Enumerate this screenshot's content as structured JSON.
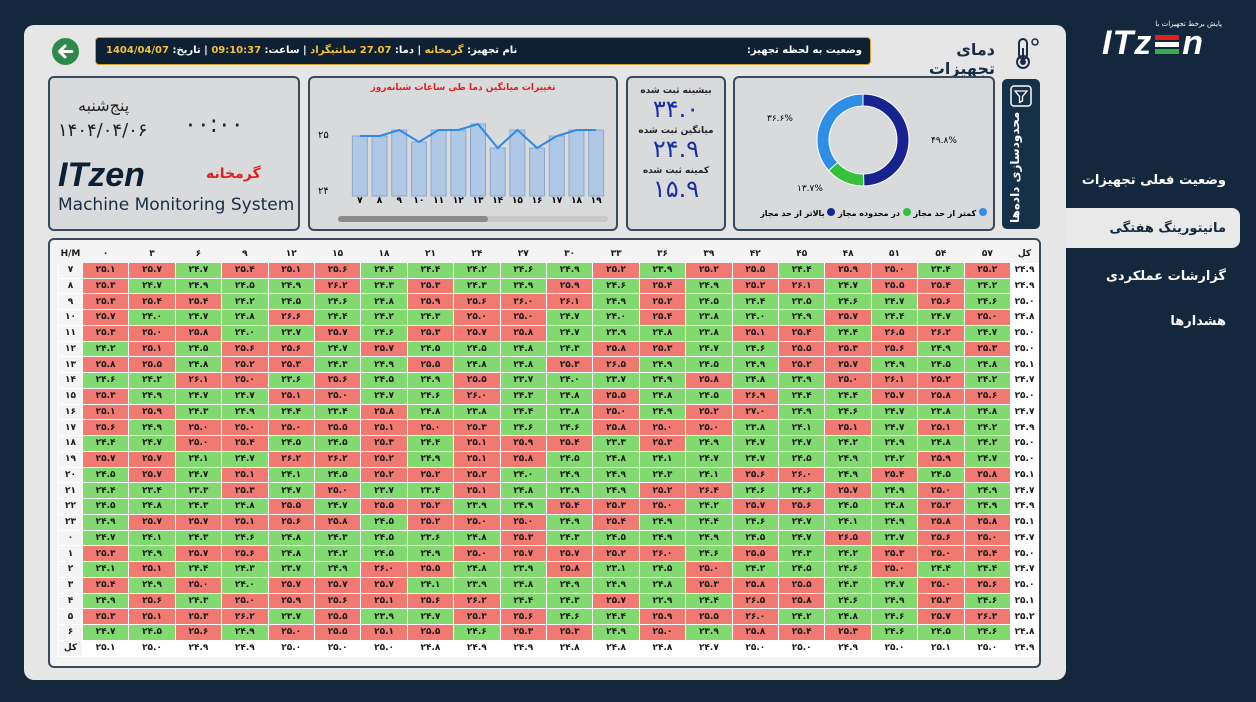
{
  "sidebar": {
    "logo_text": "ITz",
    "logo_text_tail": "n",
    "logo_tagline": "پایش برخط تجهیزات با",
    "items": [
      {
        "label": "وضعیت فعلی تجهیزات"
      },
      {
        "label": "مانیتورینگ هفتگی"
      },
      {
        "label": "گزارشات عملکردی"
      },
      {
        "label": "هشدارها"
      }
    ]
  },
  "header": {
    "page_title": "دمای تجهیزات",
    "status_label": "وضعیت به لحظه تجهیز:",
    "device_name_label": "نام تجهیز:",
    "device_name": "گرمخانه",
    "temp_label": "| دما:",
    "temp_value": "27.07 سانتیگراد",
    "time_label": "| ساعت:",
    "time_value": "09:10:37",
    "date_label": "| تاریخ:",
    "date_value": "1404/04/07"
  },
  "clock_panel": {
    "weekday": "پنج‌شنبه",
    "date": "۱۴۰۴/۰۴/۰۶",
    "time": "۰۰:۰۰",
    "device": "گرمخانه",
    "brand": "ITzen",
    "system_name": "Machine Monitoring System"
  },
  "trend_chart": {
    "title": "تغییرات میانگین دما طی ساعات شبانه‌روز",
    "y_ticks": [
      "۲۵",
      "۲۴"
    ],
    "x_ticks": [
      "۷",
      "۸",
      "۹",
      "۱۰",
      "۱۱",
      "۱۲",
      "۱۳",
      "۱۴",
      "۱۵",
      "۱۶",
      "۱۷",
      "۱۸",
      "۱۹"
    ]
  },
  "chart_data": {
    "type": "bar",
    "title": "تغییرات میانگین دما طی ساعات شبانه‌روز",
    "categories": [
      "7",
      "8",
      "9",
      "10",
      "11",
      "12",
      "13",
      "14",
      "15",
      "16",
      "17",
      "18",
      "19"
    ],
    "values": [
      24.9,
      24.9,
      25.0,
      24.8,
      25.0,
      25.0,
      25.1,
      24.7,
      25.0,
      24.7,
      24.9,
      25.0,
      25.0
    ],
    "line_values": [
      24.9,
      24.9,
      25.0,
      24.8,
      25.0,
      25.0,
      25.1,
      24.7,
      25.0,
      24.7,
      24.9,
      25.0,
      25.0
    ],
    "ylim": [
      23.9,
      25.4
    ]
  },
  "stats": {
    "max_label": "بیشینه ثبت شده",
    "max_value": "۳۴.۰",
    "avg_label": "میانگین ثبت شده",
    "avg_value": "۲۴.۹",
    "min_label": "کمینه ثبت شده",
    "min_value": "۱۵.۹"
  },
  "donut": {
    "segments": [
      {
        "label": "بالاتر از حد مجاز",
        "value": 49.8,
        "pct_text": "۴۹.۸%",
        "color": "#17248f"
      },
      {
        "label": "در محدوده مجاز",
        "value": 13.7,
        "pct_text": "۱۳.۷%",
        "color": "#35c23a"
      },
      {
        "label": "کمتر از حد مجاز",
        "value": 36.6,
        "pct_text": "۳۶.۶%",
        "color": "#2f8ee6"
      }
    ],
    "legend": [
      "کمتر از حد مجاز",
      "در محدوده مجاز",
      "بالاتر از حد مجاز"
    ]
  },
  "filter": {
    "label": "محدودسازی داده‌ها"
  },
  "heatmap": {
    "corner": "H/M",
    "total_label": "کل",
    "minute_headers": [
      "۰",
      "۳",
      "۶",
      "۹",
      "۱۲",
      "۱۵",
      "۱۸",
      "۲۱",
      "۲۴",
      "۲۷",
      "۳۰",
      "۳۳",
      "۳۶",
      "۳۹",
      "۴۲",
      "۴۵",
      "۴۸",
      "۵۱",
      "۵۴",
      "۵۷"
    ],
    "hours": [
      "۷",
      "۸",
      "۹",
      "۱۰",
      "۱۱",
      "۱۲",
      "۱۳",
      "۱۴",
      "۱۵",
      "۱۶",
      "۱۷",
      "۱۸",
      "۱۹",
      "۲۰",
      "۲۱",
      "۲۲",
      "۲۳",
      "۰",
      "۱",
      "۲",
      "۳",
      "۴",
      "۵",
      "۶"
    ],
    "rows": [
      [
        "۲۵.۱",
        "۲۵.۷",
        "۲۴.۷",
        "۲۵.۴",
        "۲۵.۱",
        "۲۵.۶",
        "۲۴.۴",
        "۲۴.۴",
        "۲۴.۲",
        "۲۴.۶",
        "۲۴.۹",
        "۲۵.۲",
        "۲۳.۹",
        "۲۵.۲",
        "۲۵.۵",
        "۲۴.۴",
        "۲۵.۹",
        "۲۵.۰",
        "۲۳.۴",
        "۲۵.۲"
      ],
      [
        "۲۵.۳",
        "۲۴.۷",
        "۲۴.۹",
        "۲۴.۵",
        "۲۴.۹",
        "۲۶.۲",
        "۲۴.۳",
        "۲۵.۳",
        "۲۴.۳",
        "۲۴.۹",
        "۲۵.۹",
        "۲۴.۶",
        "۲۵.۴",
        "۲۴.۹",
        "۲۵.۲",
        "۲۶.۱",
        "۲۴.۷",
        "۲۵.۵",
        "۲۵.۴",
        "۲۴.۲"
      ],
      [
        "۲۵.۳",
        "۲۵.۴",
        "۲۵.۴",
        "۲۴.۲",
        "۲۴.۵",
        "۲۴.۶",
        "۲۴.۸",
        "۲۵.۹",
        "۲۵.۶",
        "۲۶.۰",
        "۲۶.۱",
        "۲۴.۹",
        "۲۵.۲",
        "۲۴.۵",
        "۲۴.۴",
        "۲۳.۵",
        "۲۴.۶",
        "۲۴.۷",
        "۲۵.۶",
        "۲۴.۶"
      ],
      [
        "۲۵.۷",
        "۲۴.۰",
        "۲۴.۷",
        "۲۴.۸",
        "۲۶.۶",
        "۲۴.۴",
        "۲۴.۲",
        "۲۴.۳",
        "۲۵.۰",
        "۲۵.۰",
        "۲۴.۷",
        "۲۴.۰",
        "۲۵.۴",
        "۲۳.۸",
        "۲۴.۰",
        "۲۴.۹",
        "۲۵.۷",
        "۲۴.۴",
        "۲۴.۷",
        "۲۵.۰"
      ],
      [
        "۲۵.۳",
        "۲۵.۰",
        "۲۵.۸",
        "۲۴.۰",
        "۲۳.۷",
        "۲۵.۷",
        "۲۴.۶",
        "۲۵.۳",
        "۲۵.۷",
        "۲۵.۸",
        "۲۴.۷",
        "۲۳.۹",
        "۲۴.۸",
        "۲۳.۸",
        "۲۵.۱",
        "۲۵.۴",
        "۲۴.۴",
        "۲۶.۵",
        "۲۶.۲",
        "۲۴.۷"
      ],
      [
        "۲۴.۲",
        "۲۵.۱",
        "۲۴.۵",
        "۲۵.۶",
        "۲۵.۶",
        "۲۴.۷",
        "۲۵.۷",
        "۲۴.۵",
        "۲۴.۵",
        "۲۴.۸",
        "۲۴.۳",
        "۲۵.۸",
        "۲۵.۳",
        "۲۴.۷",
        "۲۴.۶",
        "۲۵.۵",
        "۲۵.۳",
        "۲۵.۶",
        "۲۴.۹",
        "۲۵.۳"
      ],
      [
        "۲۵.۸",
        "۲۵.۵",
        "۲۴.۸",
        "۲۵.۲",
        "۲۵.۳",
        "۲۴.۳",
        "۲۴.۹",
        "۲۵.۵",
        "۲۴.۸",
        "۲۴.۸",
        "۲۵.۳",
        "۲۶.۵",
        "۲۴.۹",
        "۲۴.۵",
        "۲۴.۹",
        "۲۵.۲",
        "۲۵.۷",
        "۲۴.۹",
        "۲۴.۵",
        "۲۴.۸"
      ],
      [
        "۲۴.۶",
        "۲۴.۲",
        "۲۶.۱",
        "۲۵.۰",
        "۲۳.۶",
        "۲۵.۶",
        "۲۴.۵",
        "۲۴.۹",
        "۲۵.۵",
        "۲۳.۷",
        "۲۴.۰",
        "۲۳.۷",
        "۲۴.۹",
        "۲۵.۸",
        "۲۴.۸",
        "۲۳.۹",
        "۲۵.۰",
        "۲۶.۱",
        "۲۵.۲",
        "۲۴.۲"
      ],
      [
        "۲۵.۳",
        "۲۴.۹",
        "۲۴.۷",
        "۲۴.۷",
        "۲۵.۱",
        "۲۵.۰",
        "۲۴.۷",
        "۲۴.۶",
        "۲۶.۰",
        "۲۴.۳",
        "۲۴.۸",
        "۲۵.۵",
        "۲۴.۸",
        "۲۴.۵",
        "۲۶.۹",
        "۲۴.۴",
        "۲۴.۴",
        "۲۵.۷",
        "۲۵.۸",
        "۲۵.۶"
      ],
      [
        "۲۵.۱",
        "۲۵.۹",
        "۲۴.۳",
        "۲۴.۹",
        "۲۴.۴",
        "۲۳.۴",
        "۲۵.۸",
        "۲۴.۸",
        "۲۳.۸",
        "۲۴.۴",
        "۲۳.۸",
        "۲۵.۰",
        "۲۴.۹",
        "۲۵.۲",
        "۲۷.۰",
        "۲۴.۹",
        "۲۴.۶",
        "۲۴.۷",
        "۲۳.۸",
        "۲۴.۸"
      ],
      [
        "۲۵.۶",
        "۲۴.۹",
        "۲۵.۰",
        "۲۵.۰",
        "۲۵.۰",
        "۲۵.۵",
        "۲۵.۱",
        "۲۵.۰",
        "۲۵.۳",
        "۲۴.۶",
        "۲۴.۶",
        "۲۵.۸",
        "۲۵.۰",
        "۲۵.۰",
        "۲۳.۸",
        "۲۴.۱",
        "۲۵.۱",
        "۲۴.۷",
        "۲۵.۱",
        "۲۴.۲"
      ],
      [
        "۲۴.۴",
        "۲۴.۷",
        "۲۵.۰",
        "۲۵.۴",
        "۲۴.۵",
        "۲۴.۵",
        "۲۵.۳",
        "۲۴.۴",
        "۲۵.۱",
        "۲۵.۹",
        "۲۵.۴",
        "۲۳.۳",
        "۲۵.۳",
        "۲۴.۹",
        "۲۴.۷",
        "۲۴.۷",
        "۲۴.۲",
        "۲۴.۹",
        "۲۴.۸",
        "۲۴.۲"
      ],
      [
        "۲۵.۷",
        "۲۵.۷",
        "۲۴.۱",
        "۲۴.۷",
        "۲۶.۲",
        "۲۶.۲",
        "۲۵.۲",
        "۲۴.۹",
        "۲۵.۱",
        "۲۵.۸",
        "۲۴.۵",
        "۲۴.۸",
        "۲۴.۱",
        "۲۴.۷",
        "۲۴.۷",
        "۲۴.۵",
        "۲۴.۹",
        "۲۴.۲",
        "۲۵.۹",
        "۲۴.۷"
      ],
      [
        "۲۴.۵",
        "۲۵.۷",
        "۲۴.۷",
        "۲۵.۱",
        "۲۴.۱",
        "۲۴.۵",
        "۲۵.۲",
        "۲۵.۲",
        "۲۵.۲",
        "۲۴.۰",
        "۲۴.۹",
        "۲۴.۹",
        "۲۴.۳",
        "۲۴.۱",
        "۲۵.۶",
        "۲۶.۰",
        "۲۴.۹",
        "۲۵.۴",
        "۲۴.۵",
        "۲۵.۸"
      ],
      [
        "۲۴.۴",
        "۲۳.۴",
        "۲۳.۳",
        "۲۵.۳",
        "۲۴.۷",
        "۲۵.۰",
        "۲۳.۷",
        "۲۳.۴",
        "۲۵.۱",
        "۲۴.۸",
        "۲۳.۹",
        "۲۴.۹",
        "۲۵.۲",
        "۲۶.۴",
        "۲۴.۶",
        "۲۴.۶",
        "۲۵.۷",
        "۲۴.۹",
        "۲۵.۰",
        "۲۴.۹"
      ],
      [
        "۲۴.۵",
        "۲۴.۸",
        "۲۴.۳",
        "۲۴.۸",
        "۲۵.۵",
        "۲۴.۷",
        "۲۵.۵",
        "۲۵.۲",
        "۲۳.۹",
        "۲۴.۹",
        "۲۵.۴",
        "۲۵.۳",
        "۲۵.۰",
        "۲۴.۲",
        "۲۵.۷",
        "۲۵.۶",
        "۲۴.۵",
        "۲۴.۸",
        "۲۵.۲",
        "۲۴.۹"
      ],
      [
        "۲۴.۹",
        "۲۵.۷",
        "۲۵.۷",
        "۲۵.۱",
        "۲۵.۶",
        "۲۵.۸",
        "۲۴.۵",
        "۲۵.۲",
        "۲۵.۰",
        "۲۵.۰",
        "۲۴.۹",
        "۲۵.۴",
        "۲۴.۹",
        "۲۴.۴",
        "۲۴.۶",
        "۲۴.۷",
        "۲۴.۱",
        "۲۴.۹",
        "۲۵.۸",
        "۲۵.۸"
      ],
      [
        "۲۴.۷",
        "۲۴.۱",
        "۲۴.۳",
        "۲۴.۶",
        "۲۴.۸",
        "۲۴.۳",
        "۲۴.۵",
        "۲۳.۶",
        "۲۴.۸",
        "۲۵.۳",
        "۲۴.۳",
        "۲۴.۵",
        "۲۴.۹",
        "۲۴.۹",
        "۲۴.۵",
        "۲۴.۷",
        "۲۶.۵",
        "۲۳.۷",
        "۲۵.۶",
        "۲۵.۰"
      ],
      [
        "۲۵.۳",
        "۲۴.۹",
        "۲۵.۷",
        "۲۵.۶",
        "۲۴.۸",
        "۲۴.۲",
        "۲۴.۵",
        "۲۴.۹",
        "۲۵.۰",
        "۲۵.۷",
        "۲۵.۷",
        "۲۵.۲",
        "۲۶.۰",
        "۲۴.۶",
        "۲۵.۵",
        "۲۴.۳",
        "۲۴.۲",
        "۲۵.۳",
        "۲۵.۰",
        "۲۵.۴"
      ],
      [
        "۲۴.۱",
        "۲۵.۱",
        "۲۴.۴",
        "۲۴.۳",
        "۲۳.۷",
        "۲۴.۹",
        "۲۶.۰",
        "۲۵.۵",
        "۲۴.۸",
        "۲۳.۹",
        "۲۵.۸",
        "۲۳.۱",
        "۲۴.۵",
        "۲۵.۰",
        "۲۴.۲",
        "۲۴.۵",
        "۲۴.۶",
        "۲۵.۰",
        "۲۴.۴",
        "۲۴.۴"
      ],
      [
        "۲۵.۴",
        "۲۴.۹",
        "۲۵.۰",
        "۲۴.۰",
        "۲۵.۷",
        "۲۵.۷",
        "۲۵.۷",
        "۲۴.۱",
        "۲۳.۹",
        "۲۴.۸",
        "۲۴.۹",
        "۲۴.۹",
        "۲۴.۸",
        "۲۵.۳",
        "۲۵.۸",
        "۲۵.۵",
        "۲۴.۳",
        "۲۴.۷",
        "۲۵.۰",
        "۲۵.۶"
      ],
      [
        "۲۴.۹",
        "۲۵.۶",
        "۲۴.۳",
        "۲۵.۰",
        "۲۵.۹",
        "۲۵.۶",
        "۲۵.۱",
        "۲۵.۶",
        "۲۶.۲",
        "۲۴.۴",
        "۲۴.۳",
        "۲۵.۷",
        "۲۲.۹",
        "۲۴.۴",
        "۲۶.۵",
        "۲۵.۸",
        "۲۴.۶",
        "۲۴.۹",
        "۲۵.۳",
        "۲۴.۶"
      ],
      [
        "۲۵.۳",
        "۲۵.۱",
        "۲۵.۳",
        "۲۶.۲",
        "۲۳.۷",
        "۲۵.۵",
        "۲۳.۹",
        "۲۴.۷",
        "۲۵.۳",
        "۲۵.۶",
        "۲۴.۶",
        "۲۴.۴",
        "۲۵.۹",
        "۲۵.۵",
        "۲۶.۰",
        "۲۴.۲",
        "۲۴.۸",
        "۲۴.۶",
        "۲۵.۷",
        "۲۶.۳"
      ],
      [
        "۲۴.۷",
        "۲۴.۵",
        "۲۵.۶",
        "۲۴.۹",
        "۲۵.۰",
        "۲۵.۵",
        "۲۵.۱",
        "۲۵.۵",
        "۲۴.۶",
        "۲۵.۳",
        "۲۵.۳",
        "۲۴.۹",
        "۲۵.۰",
        "۲۳.۹",
        "۲۵.۸",
        "۲۵.۴",
        "۲۵.۳",
        "۲۴.۶",
        "۲۴.۵",
        "۲۴.۶"
      ]
    ],
    "row_totals": [
      "۲۴.۹",
      "۲۴.۹",
      "۲۵.۰",
      "۲۴.۸",
      "۲۵.۰",
      "۲۵.۰",
      "۲۵.۱",
      "۲۴.۷",
      "۲۵.۰",
      "۲۴.۷",
      "۲۴.۹",
      "۲۵.۰",
      "۲۵.۰",
      "۲۵.۱",
      "۲۴.۷",
      "۲۴.۹",
      "۲۵.۱",
      "۲۴.۷",
      "۲۵.۰",
      "۲۴.۷",
      "۲۵.۰",
      "۲۵.۱",
      "۲۵.۲",
      "۲۴.۸"
    ],
    "col_totals": [
      "۲۵.۱",
      "۲۵.۰",
      "۲۴.۹",
      "۲۴.۹",
      "۲۵.۰",
      "۲۵.۰",
      "۲۵.۰",
      "۲۴.۸",
      "۲۴.۹",
      "۲۴.۹",
      "۲۴.۸",
      "۲۴.۸",
      "۲۴.۸",
      "۲۴.۷",
      "۲۵.۰",
      "۲۵.۰",
      "۲۴.۹",
      "۲۵.۰",
      "۲۵.۱",
      "۲۵.۰"
    ],
    "grand_total": "۲۴.۹",
    "colors": {
      "low": "#82d970",
      "high": "#f07a72"
    }
  }
}
